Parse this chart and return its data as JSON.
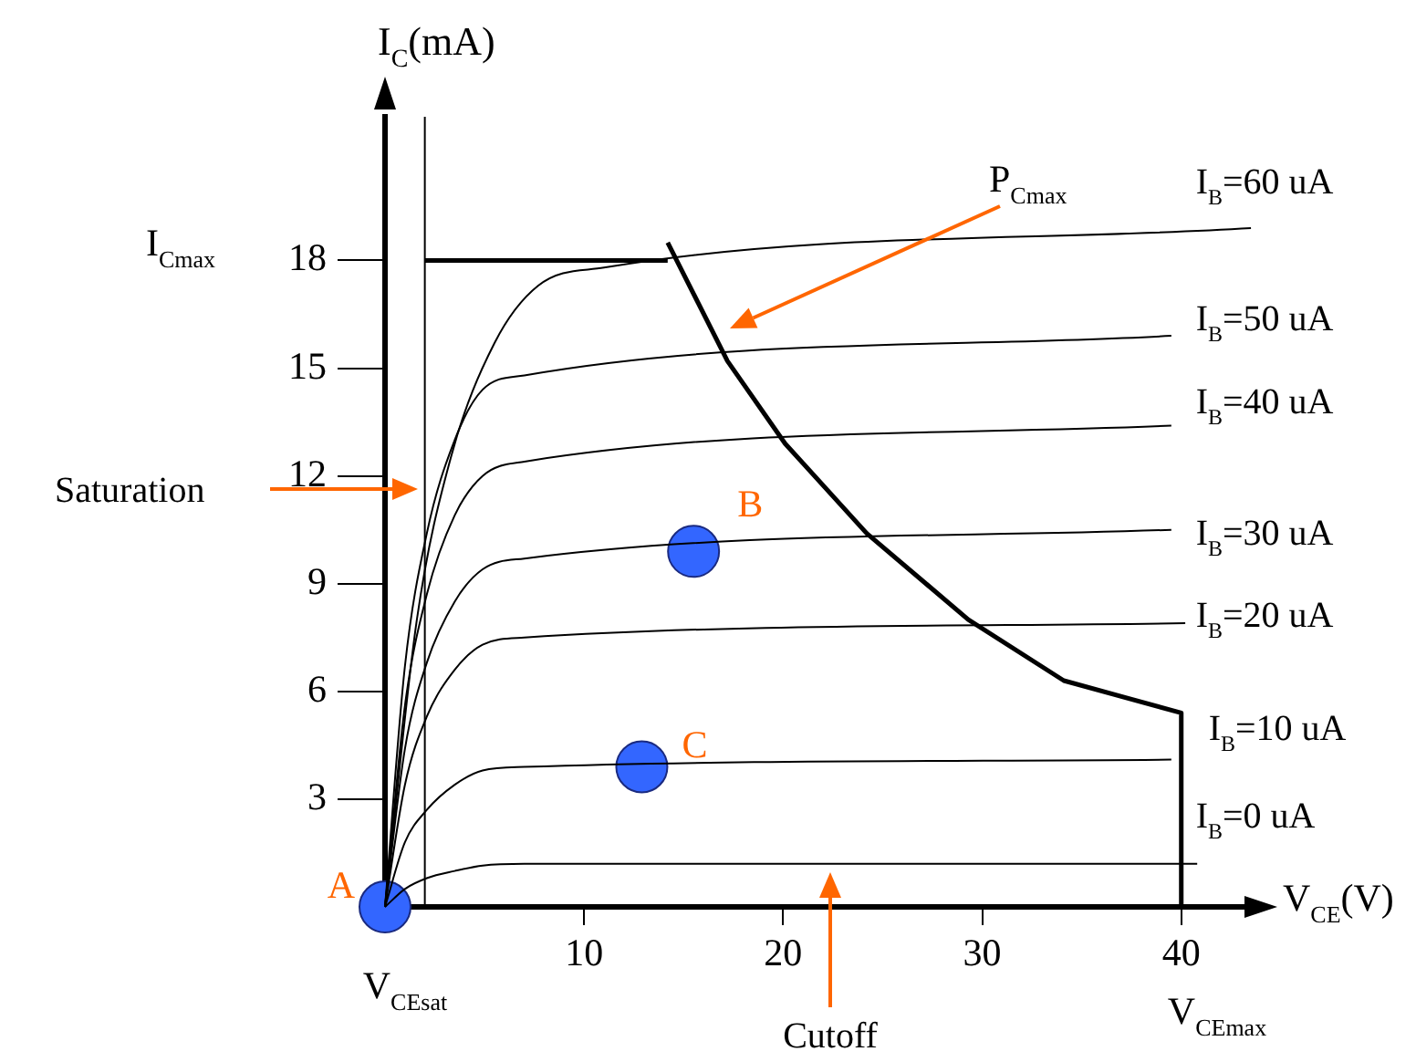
{
  "chart_data": {
    "type": "line",
    "xlabel": "V$_{CE}$(V)",
    "ylabel": "I$_{C}$(mA)",
    "xlim": [
      0,
      44
    ],
    "xticks": [
      10,
      20,
      30,
      40
    ],
    "ylim": [
      0,
      22
    ],
    "yticks": [
      3,
      6,
      9,
      12,
      15,
      18
    ],
    "grid": false,
    "legend": false,
    "line_style": "solid",
    "marker": "none",
    "series": [
      {
        "name": "I$_{B}$=60 uA",
        "color": "#000000",
        "x": [
          0,
          1.6,
          3.3,
          5.5,
          7.7,
          11,
          43.5
        ],
        "values": [
          0,
          8.0,
          12.5,
          15.7,
          17.3,
          17.8,
          18.9
        ]
      },
      {
        "name": "I$_{B}$=50 uA",
        "color": "#000000",
        "x": [
          0,
          1.0,
          2.1,
          3.5,
          4.9,
          7,
          39.5
        ],
        "values": [
          0,
          6.7,
          10.4,
          13.0,
          14.4,
          14.8,
          15.9
        ]
      },
      {
        "name": "I$_{B}$=40 uA",
        "color": "#000000",
        "x": [
          0,
          1.0,
          2.1,
          3.5,
          4.9,
          7,
          39.5
        ],
        "values": [
          0,
          5.6,
          8.7,
          10.9,
          12.0,
          12.4,
          13.4
        ]
      },
      {
        "name": "I$_{B}$=30 uA",
        "color": "#000000",
        "x": [
          0,
          1.0,
          2.1,
          3.5,
          4.9,
          7,
          39.5
        ],
        "values": [
          0,
          4.4,
          6.8,
          8.5,
          9.4,
          9.7,
          10.5
        ]
      },
      {
        "name": "I$_{B}$=20 uA",
        "color": "#000000",
        "x": [
          0,
          1.0,
          2.1,
          3.5,
          4.9,
          7,
          40.2
        ],
        "values": [
          0,
          3.4,
          5.3,
          6.6,
          7.3,
          7.5,
          7.9
        ]
      },
      {
        "name": "I$_{B}$=10 uA",
        "color": "#000000",
        "x": [
          0,
          1.0,
          2.1,
          3.5,
          4.9,
          7,
          39.5
        ],
        "values": [
          0,
          1.8,
          2.7,
          3.4,
          3.8,
          3.9,
          4.1
        ]
      },
      {
        "name": "I$_{B}$=0 uA",
        "color": "#000000",
        "x": [
          0,
          1.0,
          2.1,
          3.5,
          4.9,
          7,
          40.8
        ],
        "values": [
          0,
          0.5,
          0.8,
          1.0,
          1.15,
          1.2,
          1.2
        ]
      },
      {
        "color": "#000000",
        "x": [
          2,
          14.2
        ],
        "values": [
          18,
          18
        ]
      },
      {
        "color": "#000000",
        "x": [
          14.2,
          17.2,
          20.1,
          24.2,
          29.3,
          34.1,
          40,
          40
        ],
        "values": [
          18.5,
          15.2,
          12.9,
          10.4,
          8.0,
          6.3,
          5.4,
          0
        ]
      },
      {
        "type": "scatter",
        "color": "#3366ff",
        "marker": "circle",
        "x": [
          0,
          15.5,
          12.9
        ],
        "values": [
          0,
          9.9,
          3.9
        ]
      }
    ],
    "ref_lines": [
      {
        "axis": "x",
        "value": 2,
        "color": "#000000"
      }
    ],
    "annotations": [
      "I$_{Cmax}$",
      "P$_{Cmax}$",
      "Saturation",
      "Cutoff",
      "V$_{CEsat}$",
      "V$_{CEmax}$",
      {
        "text": "A",
        "x": 0,
        "y": 0
      },
      {
        "text": "B",
        "x": 15.5,
        "y": 9.9
      },
      {
        "text": "C",
        "x": 12.9,
        "y": 3.9
      }
    ]
  }
}
